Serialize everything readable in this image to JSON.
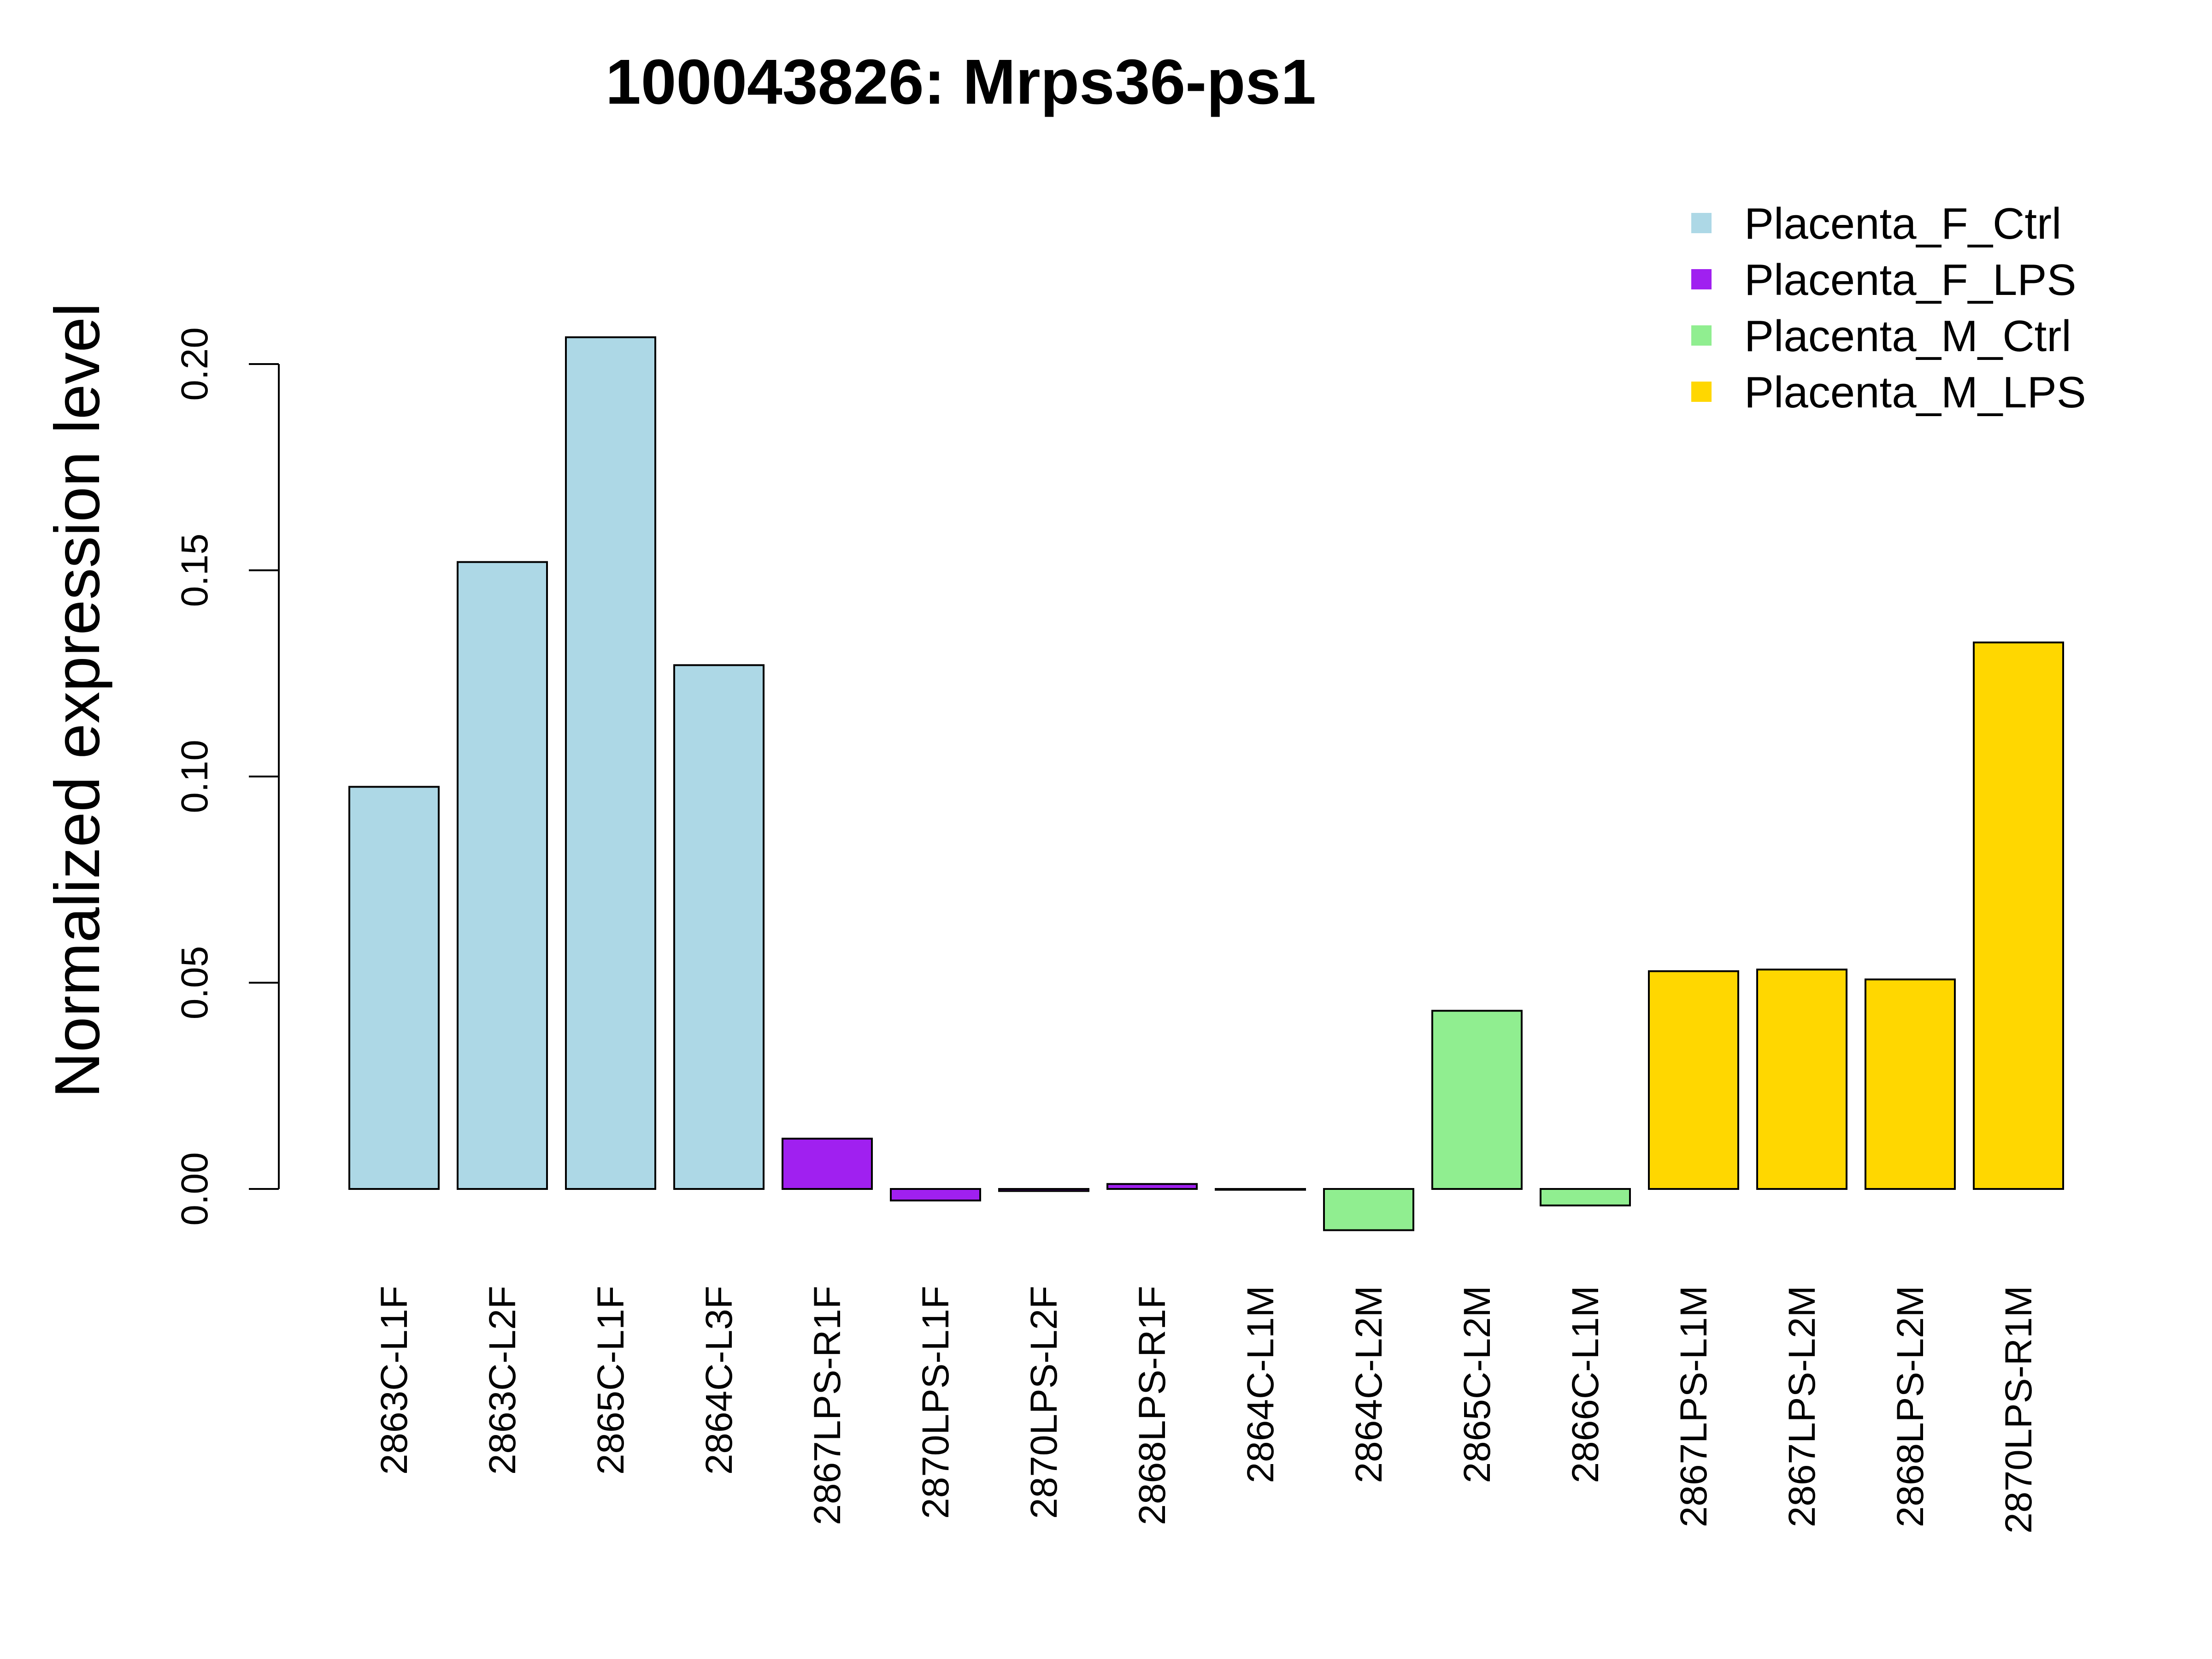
{
  "chart_data": {
    "type": "bar",
    "title": "100043826: Mrps36-ps1",
    "xlabel": "",
    "ylabel": "Normalized expression level",
    "ylim": [
      -0.012,
      0.22
    ],
    "yticks": [
      "0.00",
      "0.05",
      "0.10",
      "0.15",
      "0.20"
    ],
    "ytick_values": [
      0,
      0.05,
      0.1,
      0.15,
      0.2
    ],
    "categories": [
      "2863C-L1F",
      "2863C-L2F",
      "2865C-L1F",
      "2864C-L3F",
      "2867LPS-R1F",
      "2870LPS-L1F",
      "2870LPS-L2F",
      "2868LPS-R1F",
      "2864C-L1M",
      "2864C-L2M",
      "2865C-L2M",
      "2866C-L1M",
      "2867LPS-L1M",
      "2867LPS-L2M",
      "2868LPS-L2M",
      "2870LPS-R1M"
    ],
    "values": [
      0.0975,
      0.152,
      0.2065,
      0.127,
      0.0122,
      -0.0028,
      -0.0005,
      0.0012,
      -0.0002,
      -0.01,
      0.0432,
      -0.004,
      0.0528,
      0.0532,
      0.0508,
      0.1325
    ],
    "groups": [
      "Placenta_F_Ctrl",
      "Placenta_F_Ctrl",
      "Placenta_F_Ctrl",
      "Placenta_F_Ctrl",
      "Placenta_F_LPS",
      "Placenta_F_LPS",
      "Placenta_F_LPS",
      "Placenta_F_LPS",
      "Placenta_M_Ctrl",
      "Placenta_M_Ctrl",
      "Placenta_M_Ctrl",
      "Placenta_M_Ctrl",
      "Placenta_M_LPS",
      "Placenta_M_LPS",
      "Placenta_M_LPS",
      "Placenta_M_LPS"
    ],
    "legend": [
      {
        "name": "Placenta_F_Ctrl",
        "color": "#ADD8E6"
      },
      {
        "name": "Placenta_F_LPS",
        "color": "#A020F0"
      },
      {
        "name": "Placenta_M_Ctrl",
        "color": "#90EE90"
      },
      {
        "name": "Placenta_M_LPS",
        "color": "#FFD700"
      }
    ],
    "legend_position": "top-right",
    "grid": false
  }
}
